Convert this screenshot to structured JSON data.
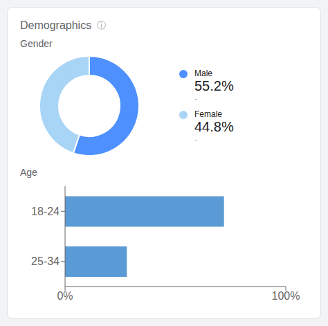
{
  "title": "Demographics",
  "annotations": [
    "ⓘ"
  ],
  "chart_data": [
    {
      "type": "pie",
      "title": "Gender",
      "categories": [
        "Male",
        "Female"
      ],
      "values": [
        55.2,
        44.8
      ],
      "value_labels": [
        "55.2%",
        "44.8%"
      ],
      "annotations": [
        "-",
        "-"
      ],
      "colors": [
        "#4d90fe",
        "#a8d4f5"
      ],
      "legend": "right"
    },
    {
      "type": "bar",
      "title": "Age",
      "orientation": "horizontal",
      "categories": [
        "18-24",
        "25-34"
      ],
      "values": [
        72,
        28
      ],
      "color": "#5b9bd5",
      "xlim": [
        0,
        100
      ],
      "xticks": [
        {
          "value": 0,
          "label": "0%"
        },
        {
          "value": 100,
          "label": "100%"
        }
      ],
      "grid": false
    }
  ]
}
